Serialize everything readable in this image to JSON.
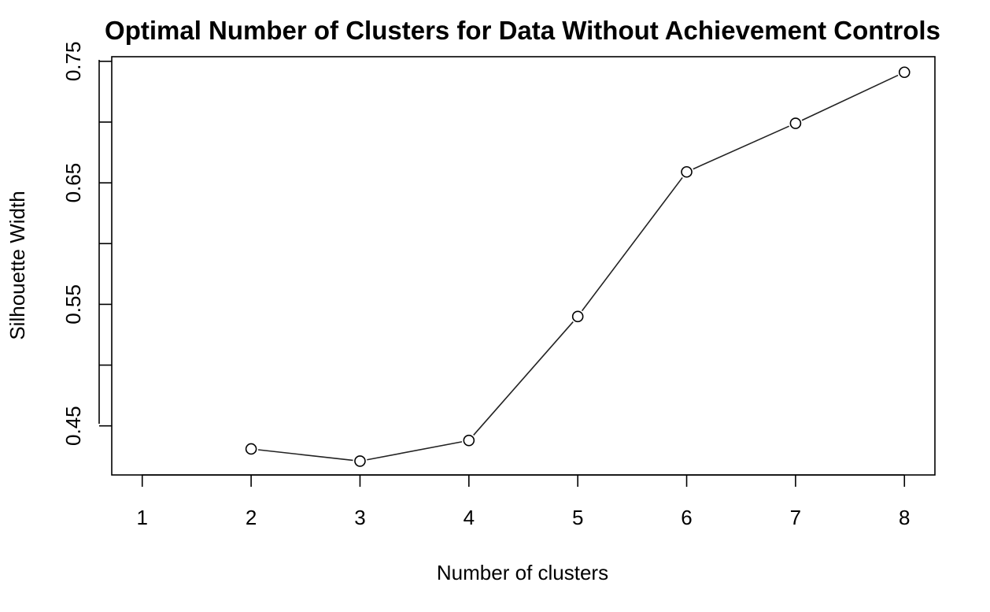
{
  "chart_data": {
    "type": "line",
    "title": "Optimal Number of Clusters for Data Without Achievement Controls",
    "xlabel": "Number of clusters",
    "ylabel": "Silhouette Width",
    "x_ticks": [
      "1",
      "2",
      "3",
      "4",
      "5",
      "6",
      "7",
      "8"
    ],
    "y_ticks": [
      "0.45",
      "0.55",
      "0.65",
      "0.75"
    ],
    "y_minor_ticks": [
      0.45,
      0.5,
      0.55,
      0.6,
      0.65,
      0.7,
      0.75
    ],
    "xlim": [
      0.72,
      8.28
    ],
    "ylim": [
      0.4096,
      0.7538
    ],
    "grid": false,
    "marker": "open-circle",
    "series": [
      {
        "x": [
          2,
          3,
          4,
          5,
          6,
          7,
          8
        ],
        "y": [
          0.431,
          0.421,
          0.438,
          0.54,
          0.659,
          0.699,
          0.741
        ]
      }
    ]
  }
}
